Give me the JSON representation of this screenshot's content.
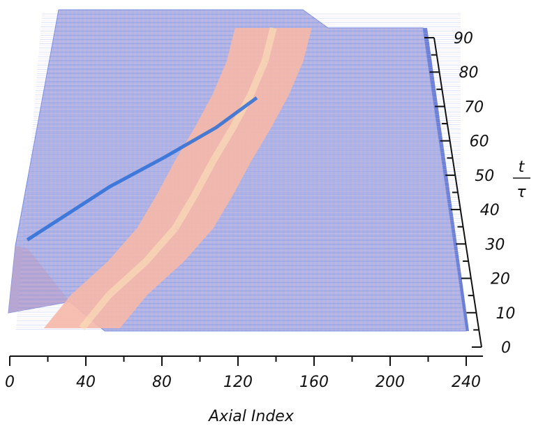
{
  "chart_data": {
    "type": "surface",
    "xlabel": "Axial Index",
    "ylabel_numerator": "t",
    "ylabel_denominator": "τ",
    "xlim": [
      0,
      240
    ],
    "ylim": [
      0,
      90
    ],
    "x_ticks": [
      0,
      40,
      80,
      120,
      160,
      200,
      240
    ],
    "x_tick_labels": [
      "0",
      "40",
      "80",
      "120",
      "160",
      "200",
      "240"
    ],
    "y_ticks": [
      0,
      10,
      20,
      30,
      40,
      50,
      60,
      70,
      80,
      90
    ],
    "y_tick_labels": [
      "0",
      "10",
      "20",
      "30",
      "40",
      "50",
      "60",
      "70",
      "80",
      "90"
    ],
    "base_color": "#a9b5ec",
    "front_color": "#f6b8a8",
    "bright_band_color": "#2a6fd8",
    "front_center": {
      "t": [
        0,
        10,
        20,
        30,
        40,
        50,
        60,
        70,
        80,
        90
      ],
      "axial_index": [
        38,
        55,
        77,
        95,
        108,
        120,
        133,
        145,
        155,
        162
      ]
    },
    "front_width_axial": 20,
    "bright_band": {
      "t": [
        22,
        30,
        40,
        50,
        60,
        70
      ],
      "axial_index": [
        5,
        25,
        50,
        80,
        108,
        130
      ]
    },
    "left_edge_axial": [
      0,
      30
    ],
    "right_edge_axial": [
      240,
      220
    ]
  }
}
